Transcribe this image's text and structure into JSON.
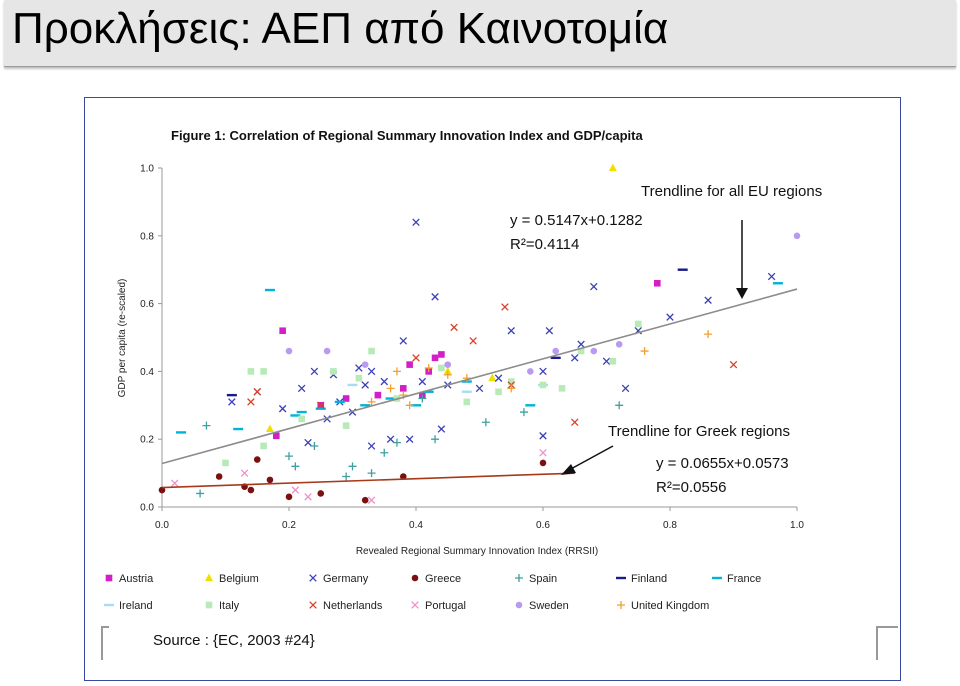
{
  "slide": {
    "title": "Προκλήσεις: ΑΕΠ από Καινοτομία"
  },
  "chart_data": {
    "type": "scatter",
    "title": "Figure 1: Correlation of Regional Summary Innovation Index and GDP/capita",
    "xlabel": "Revealed Regional Summary Innovation Index (RRSII)",
    "ylabel": "GDP per capita (re-scaled)",
    "xlim": [
      0,
      1
    ],
    "ylim": [
      0,
      1
    ],
    "xticks": [
      "0.0",
      "0.2",
      "0.4",
      "0.6",
      "0.8",
      "1.0"
    ],
    "yticks": [
      "0.0",
      "0.2",
      "0.4",
      "0.6",
      "0.8",
      "1.0"
    ],
    "grid": false,
    "legend_position": "bottom",
    "series": [
      {
        "name": "Austria",
        "marker": "square",
        "color": "#d21fc8",
        "points": [
          [
            0.19,
            0.52
          ],
          [
            0.78,
            0.66
          ],
          [
            0.39,
            0.42
          ],
          [
            0.42,
            0.4
          ],
          [
            0.43,
            0.44
          ],
          [
            0.34,
            0.33
          ],
          [
            0.41,
            0.33
          ],
          [
            0.29,
            0.32
          ],
          [
            0.18,
            0.21
          ],
          [
            0.25,
            0.3
          ],
          [
            0.38,
            0.35
          ],
          [
            0.44,
            0.45
          ]
        ]
      },
      {
        "name": "Belgium",
        "marker": "triangle",
        "color": "#f0e000",
        "points": [
          [
            0.71,
            1.0
          ],
          [
            0.17,
            0.23
          ],
          [
            0.52,
            0.38
          ],
          [
            0.45,
            0.4
          ]
        ]
      },
      {
        "name": "Germany",
        "marker": "x",
        "color": "#3a40b8",
        "points": [
          [
            0.4,
            0.84
          ],
          [
            0.43,
            0.62
          ],
          [
            0.68,
            0.65
          ],
          [
            0.61,
            0.52
          ],
          [
            0.96,
            0.68
          ],
          [
            0.8,
            0.56
          ],
          [
            0.86,
            0.61
          ],
          [
            0.55,
            0.52
          ],
          [
            0.38,
            0.49
          ],
          [
            0.31,
            0.41
          ],
          [
            0.35,
            0.37
          ],
          [
            0.45,
            0.36
          ],
          [
            0.27,
            0.39
          ],
          [
            0.33,
            0.4
          ],
          [
            0.24,
            0.4
          ],
          [
            0.22,
            0.35
          ],
          [
            0.11,
            0.31
          ],
          [
            0.3,
            0.28
          ],
          [
            0.26,
            0.26
          ],
          [
            0.36,
            0.2
          ],
          [
            0.33,
            0.18
          ],
          [
            0.23,
            0.19
          ],
          [
            0.39,
            0.2
          ],
          [
            0.6,
            0.4
          ],
          [
            0.66,
            0.48
          ],
          [
            0.6,
            0.21
          ],
          [
            0.73,
            0.35
          ],
          [
            0.53,
            0.38
          ],
          [
            0.5,
            0.35
          ],
          [
            0.44,
            0.23
          ],
          [
            0.65,
            0.44
          ],
          [
            0.28,
            0.31
          ],
          [
            0.32,
            0.36
          ],
          [
            0.41,
            0.37
          ],
          [
            0.7,
            0.43
          ],
          [
            0.75,
            0.52
          ],
          [
            0.15,
            0.34
          ],
          [
            0.19,
            0.29
          ]
        ]
      },
      {
        "name": "Greece",
        "marker": "circle",
        "color": "#7a1010",
        "points": [
          [
            0.0,
            0.05
          ],
          [
            0.09,
            0.09
          ],
          [
            0.15,
            0.14
          ],
          [
            0.13,
            0.06
          ],
          [
            0.14,
            0.05
          ],
          [
            0.17,
            0.08
          ],
          [
            0.2,
            0.03
          ],
          [
            0.25,
            0.04
          ],
          [
            0.32,
            0.02
          ],
          [
            0.38,
            0.09
          ],
          [
            0.6,
            0.13
          ]
        ]
      },
      {
        "name": "Spain",
        "marker": "plus",
        "color": "#3fa0a0",
        "points": [
          [
            0.07,
            0.24
          ],
          [
            0.06,
            0.04
          ],
          [
            0.2,
            0.15
          ],
          [
            0.24,
            0.18
          ],
          [
            0.29,
            0.09
          ],
          [
            0.3,
            0.12
          ],
          [
            0.33,
            0.1
          ],
          [
            0.35,
            0.16
          ],
          [
            0.43,
            0.2
          ],
          [
            0.51,
            0.25
          ],
          [
            0.57,
            0.28
          ],
          [
            0.72,
            0.3
          ],
          [
            0.41,
            0.32
          ],
          [
            0.37,
            0.19
          ],
          [
            0.21,
            0.12
          ]
        ]
      },
      {
        "name": "Finland",
        "marker": "dash",
        "color": "#1a1a8a",
        "points": [
          [
            0.82,
            0.7
          ],
          [
            0.11,
            0.33
          ],
          [
            0.62,
            0.44
          ]
        ]
      },
      {
        "name": "France",
        "marker": "dash",
        "color": "#00b4d8",
        "points": [
          [
            0.17,
            0.64
          ],
          [
            0.97,
            0.66
          ],
          [
            0.03,
            0.22
          ],
          [
            0.12,
            0.23
          ],
          [
            0.21,
            0.27
          ],
          [
            0.25,
            0.29
          ],
          [
            0.28,
            0.31
          ],
          [
            0.32,
            0.3
          ],
          [
            0.36,
            0.32
          ],
          [
            0.4,
            0.3
          ],
          [
            0.58,
            0.3
          ],
          [
            0.48,
            0.37
          ],
          [
            0.42,
            0.34
          ],
          [
            0.22,
            0.28
          ]
        ]
      },
      {
        "name": "Ireland",
        "marker": "dash",
        "color": "#a8dcf4",
        "points": [
          [
            0.6,
            0.36
          ],
          [
            0.48,
            0.34
          ],
          [
            0.3,
            0.36
          ]
        ]
      },
      {
        "name": "Italy",
        "marker": "square",
        "color": "#b8eab8",
        "points": [
          [
            0.14,
            0.4
          ],
          [
            0.16,
            0.4
          ],
          [
            0.27,
            0.4
          ],
          [
            0.33,
            0.46
          ],
          [
            0.55,
            0.37
          ],
          [
            0.6,
            0.36
          ],
          [
            0.63,
            0.35
          ],
          [
            0.1,
            0.13
          ],
          [
            0.16,
            0.18
          ],
          [
            0.22,
            0.26
          ],
          [
            0.29,
            0.24
          ],
          [
            0.31,
            0.38
          ],
          [
            0.37,
            0.32
          ],
          [
            0.44,
            0.41
          ],
          [
            0.48,
            0.31
          ],
          [
            0.53,
            0.34
          ],
          [
            0.66,
            0.46
          ],
          [
            0.71,
            0.43
          ],
          [
            0.75,
            0.54
          ]
        ]
      },
      {
        "name": "Netherlands",
        "marker": "x",
        "color": "#d8402a",
        "points": [
          [
            0.54,
            0.59
          ],
          [
            0.46,
            0.53
          ],
          [
            0.49,
            0.49
          ],
          [
            0.65,
            0.25
          ],
          [
            0.9,
            0.42
          ],
          [
            0.15,
            0.34
          ],
          [
            0.14,
            0.31
          ],
          [
            0.4,
            0.44
          ],
          [
            0.25,
            0.3
          ],
          [
            0.55,
            0.36
          ]
        ]
      },
      {
        "name": "Portugal",
        "marker": "x",
        "color": "#ef8fc8",
        "points": [
          [
            0.02,
            0.07
          ],
          [
            0.13,
            0.1
          ],
          [
            0.23,
            0.03
          ],
          [
            0.33,
            0.02
          ],
          [
            0.6,
            0.16
          ],
          [
            0.21,
            0.05
          ]
        ]
      },
      {
        "name": "Sweden",
        "marker": "circle",
        "color": "#b89af0",
        "points": [
          [
            1.0,
            0.8
          ],
          [
            0.2,
            0.46
          ],
          [
            0.26,
            0.46
          ],
          [
            0.32,
            0.42
          ],
          [
            0.45,
            0.42
          ],
          [
            0.62,
            0.46
          ],
          [
            0.68,
            0.46
          ],
          [
            0.72,
            0.48
          ],
          [
            0.58,
            0.4
          ]
        ]
      },
      {
        "name": "United Kingdom",
        "marker": "plus",
        "color": "#f0a030",
        "points": [
          [
            0.86,
            0.51
          ],
          [
            0.76,
            0.46
          ],
          [
            0.45,
            0.39
          ],
          [
            0.48,
            0.38
          ],
          [
            0.55,
            0.35
          ],
          [
            0.36,
            0.35
          ],
          [
            0.38,
            0.33
          ],
          [
            0.33,
            0.31
          ],
          [
            0.39,
            0.3
          ],
          [
            0.42,
            0.41
          ],
          [
            0.37,
            0.4
          ]
        ]
      }
    ],
    "trendlines": [
      {
        "label": "Trendline for all EU regions",
        "equation": "y = 0.5147x+0.1282",
        "r2": "R²=0.4114",
        "slope": 0.5147,
        "intercept": 0.1282,
        "x_range": [
          0,
          1
        ],
        "color": "#8c8c8c"
      },
      {
        "label": "Trendline for Greek regions",
        "equation": "y = 0.0655x+0.0573",
        "r2": "R²=0.0556",
        "slope": 0.0655,
        "intercept": 0.0573,
        "x_range": [
          0,
          0.65
        ],
        "color": "#a83a1a"
      }
    ],
    "source": "Source : {EC, 2003 #24}"
  }
}
